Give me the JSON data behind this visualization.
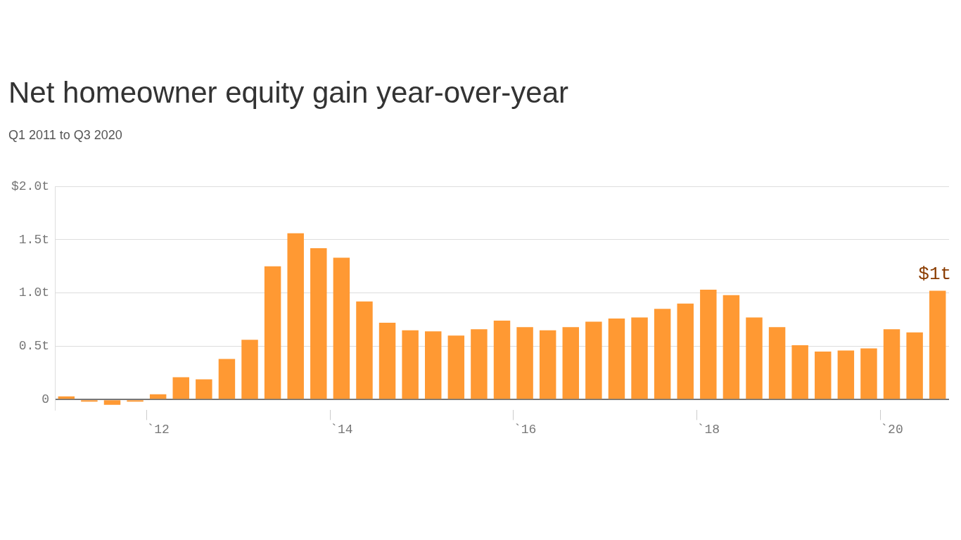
{
  "chart_data": {
    "type": "bar",
    "title": "Net homeowner equity gain year-over-year",
    "subtitle": "Q1 2011 to Q3 2020",
    "categories": [
      null,
      null,
      null,
      null,
      "`12",
      null,
      null,
      null,
      null,
      null,
      null,
      null,
      "`14",
      null,
      null,
      null,
      null,
      null,
      null,
      null,
      "`16",
      null,
      null,
      null,
      null,
      null,
      null,
      null,
      "`18",
      null,
      null,
      null,
      null,
      null,
      null,
      null,
      "`20",
      null,
      null
    ],
    "values": [
      0.03,
      -0.02,
      -0.05,
      -0.02,
      0.05,
      0.21,
      0.19,
      0.38,
      0.56,
      1.25,
      1.56,
      1.42,
      1.33,
      0.92,
      0.72,
      0.65,
      0.64,
      0.6,
      0.66,
      0.74,
      0.68,
      0.65,
      0.68,
      0.73,
      0.76,
      0.77,
      0.85,
      0.9,
      1.03,
      0.98,
      0.77,
      0.68,
      0.51,
      0.45,
      0.46,
      0.48,
      0.66,
      0.63,
      1.02
    ],
    "color": "#ff9933",
    "ylim": [
      -0.1,
      2.0
    ],
    "yticks": [
      0,
      {
        "value": 0.5,
        "label": "0.5t"
      },
      {
        "value": 1.0,
        "label": "1.0t"
      },
      {
        "value": 1.5,
        "label": "1.5t"
      },
      {
        "value": 2.0,
        "label": "$2.0t"
      }
    ],
    "grid": "y",
    "annotations": [
      {
        "text": "$1t",
        "y": 1.02
      }
    ]
  }
}
